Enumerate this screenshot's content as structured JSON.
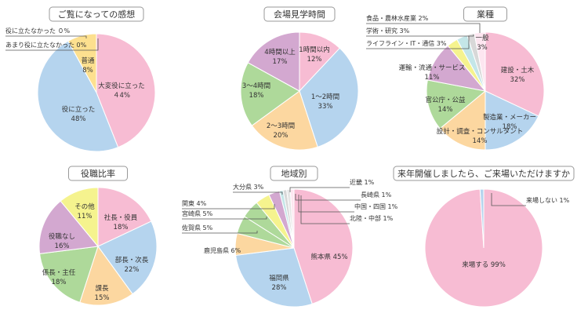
{
  "chart_data": [
    {
      "type": "pie",
      "title": "ご覧になっての感想",
      "slices": [
        {
          "label": "大変役に立った",
          "pct": "４4%",
          "value": 44,
          "color": "#f7bcd3"
        },
        {
          "label": "役に立った",
          "pct": "48%",
          "value": 48,
          "color": "#b5d4ee"
        },
        {
          "label": "普通",
          "pct": "8%",
          "value": 8,
          "color": "#fde08f"
        },
        {
          "label": "あまり役に立たなかった 0%",
          "value": 0,
          "color": "#fde08f"
        },
        {
          "label": "役に立たなかった ０%",
          "value": 0,
          "color": "#fde08f"
        }
      ]
    },
    {
      "type": "pie",
      "title": "会場見学時間",
      "slices": [
        {
          "label": "1時間以内",
          "pct": "12%",
          "value": 12,
          "color": "#f7bcd3"
        },
        {
          "label": "1〜2時間",
          "pct": "33%",
          "value": 33,
          "color": "#b5d4ee"
        },
        {
          "label": "2〜3時間",
          "pct": "20%",
          "value": 20,
          "color": "#fcd7a0"
        },
        {
          "label": "3〜4時間",
          "pct": "18%",
          "value": 18,
          "color": "#aed99a"
        },
        {
          "label": "4時間以上",
          "pct": "17%",
          "value": 17,
          "color": "#d3a8d0"
        }
      ]
    },
    {
      "type": "pie",
      "title": "業種",
      "slices": [
        {
          "label": "建設・土木",
          "pct": "32%",
          "value": 32,
          "color": "#f7bcd3"
        },
        {
          "label": "製造業・メーカー",
          "pct": "18%",
          "value": 18,
          "color": "#b5d4ee"
        },
        {
          "label": "設計・調査・コンサルタント",
          "pct": "14%",
          "value": 14,
          "color": "#fcd7a0"
        },
        {
          "label": "官公庁・公益",
          "pct": "14%",
          "value": 14,
          "color": "#aed99a"
        },
        {
          "label": "運輸・流通・サービス",
          "pct": "11%",
          "value": 11,
          "color": "#d3a8d0"
        },
        {
          "label": "ライフライン・IT・通信 3%",
          "value": 3,
          "color": "#f5f38e"
        },
        {
          "label": "学術・研究 3%",
          "value": 3,
          "color": "#c4e6e8"
        },
        {
          "label": "食品・農林水産業 2%",
          "value": 2,
          "color": "#d8d8d8"
        },
        {
          "label": "一般",
          "pct": "3%",
          "value": 3,
          "color": "#fde6f0"
        }
      ]
    },
    {
      "type": "pie",
      "title": "役職比率",
      "slices": [
        {
          "label": "社長・役員",
          "pct": "18%",
          "value": 18,
          "color": "#f7bcd3"
        },
        {
          "label": "部長・次長",
          "pct": "22%",
          "value": 22,
          "color": "#b5d4ee"
        },
        {
          "label": "課長",
          "pct": "15%",
          "value": 15,
          "color": "#fcd7a0"
        },
        {
          "label": "係長・主任",
          "pct": "18%",
          "value": 18,
          "color": "#aed99a"
        },
        {
          "label": "役職なし",
          "pct": "16%",
          "value": 16,
          "color": "#d3a8d0"
        },
        {
          "label": "その他",
          "pct": "11%",
          "value": 11,
          "color": "#f5f38e"
        }
      ]
    },
    {
      "type": "pie",
      "title": "地域別",
      "slices": [
        {
          "label": "熊本県 45%",
          "value": 45,
          "color": "#f7bcd3"
        },
        {
          "label": "福岡県",
          "pct": "28%",
          "value": 28,
          "color": "#b5d4ee"
        },
        {
          "label": "鹿児島県 6%",
          "value": 6,
          "color": "#fcd7a0"
        },
        {
          "label": "佐賀県 5%",
          "value": 5,
          "color": "#aed99a"
        },
        {
          "label": "宮崎県 5%",
          "value": 5,
          "color": "#aed99a"
        },
        {
          "label": "関東 4%",
          "value": 4,
          "color": "#f5f38e"
        },
        {
          "label": "大分県 3%",
          "value": 3,
          "color": "#d3a8d0"
        },
        {
          "label": "近畿 1%",
          "value": 1,
          "color": "#c4e6e8"
        },
        {
          "label": "長崎県 1%",
          "value": 1,
          "color": "#d8d8d8"
        },
        {
          "label": "中国・四国 1%",
          "value": 1,
          "color": "#e6e6e6"
        },
        {
          "label": "北陸・中部 1%",
          "value": 1,
          "color": "#fde6f0"
        }
      ]
    },
    {
      "type": "pie",
      "title": "来年開催しましたら、ご来場いただけますか",
      "slices": [
        {
          "label": "来場する 99%",
          "value": 99,
          "color": "#f7bcd3"
        },
        {
          "label": "来場しない 1%",
          "value": 1,
          "color": "#b5d4ee"
        }
      ]
    }
  ]
}
